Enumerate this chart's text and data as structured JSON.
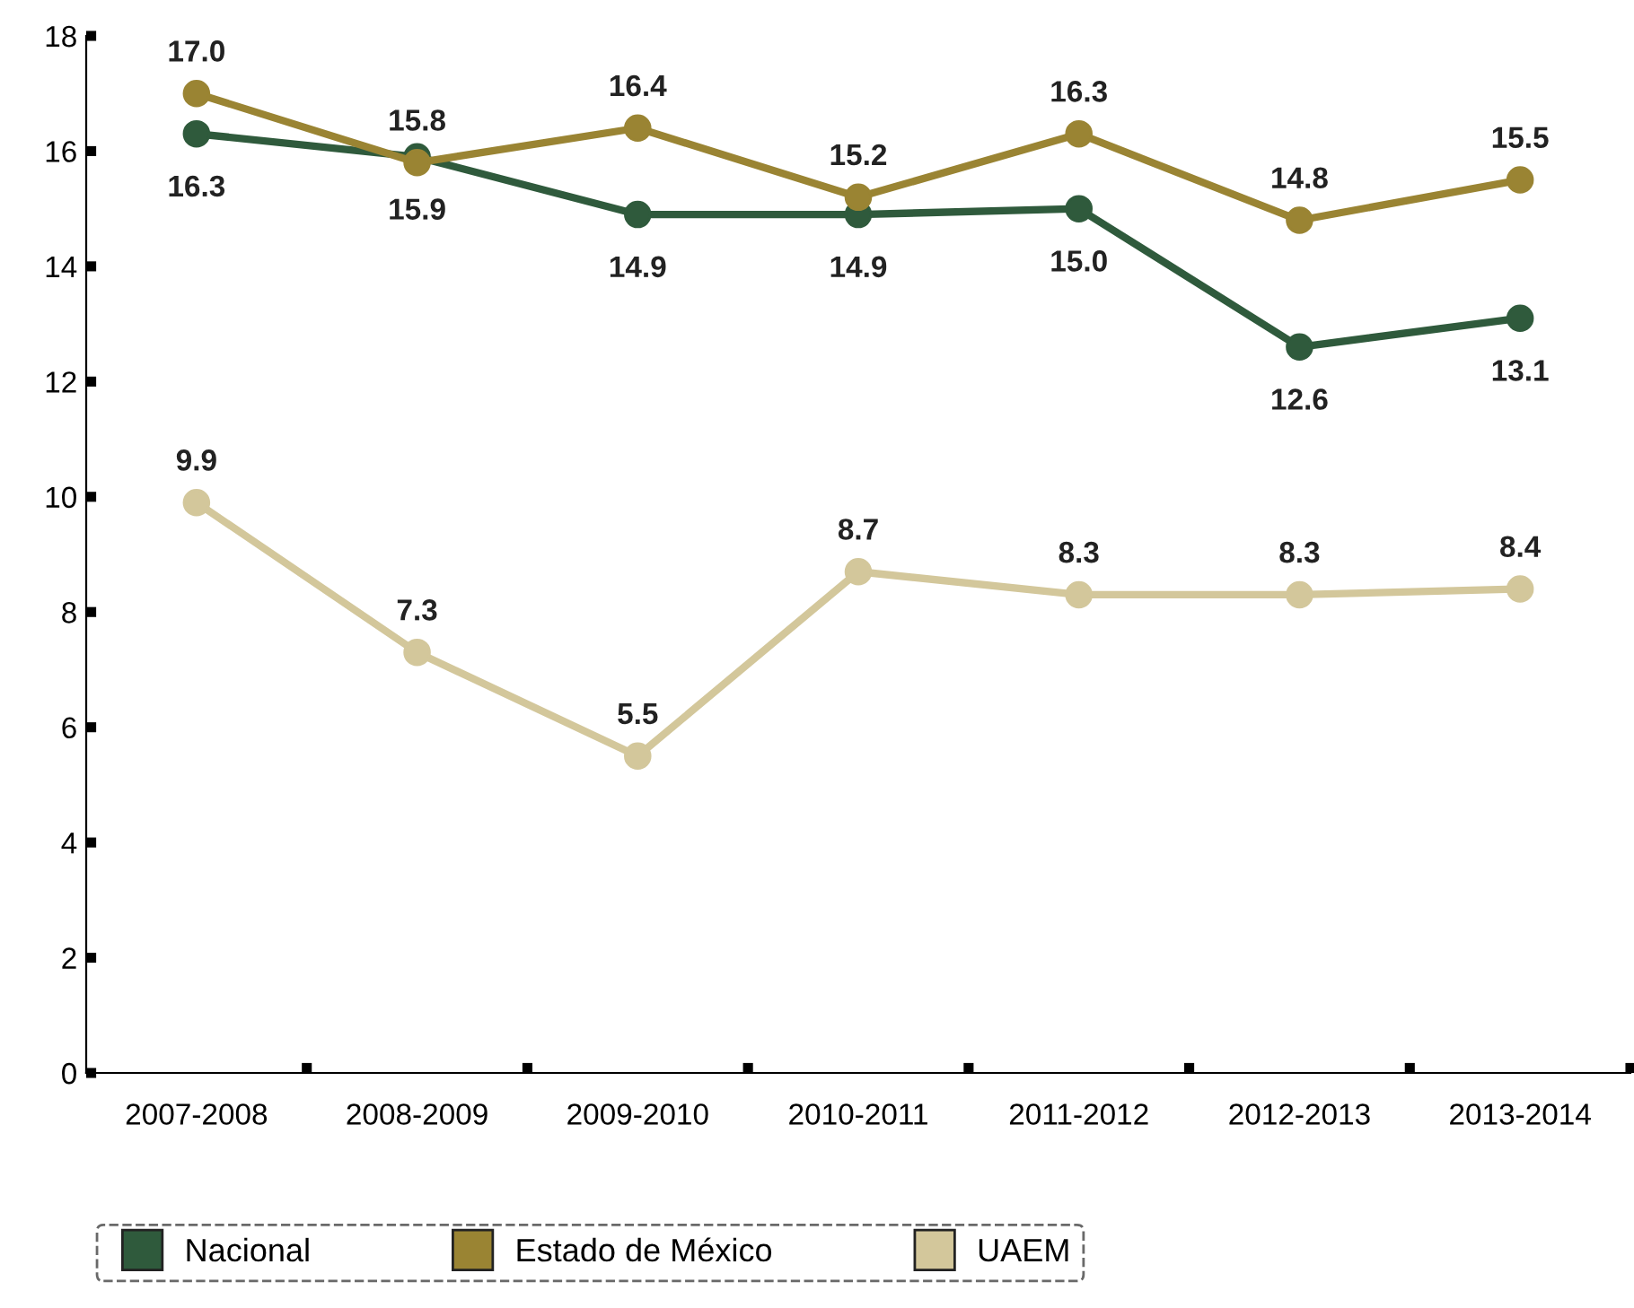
{
  "chart_data": {
    "type": "line",
    "categories": [
      "2007-2008",
      "2008-2009",
      "2009-2010",
      "2010-2011",
      "2011-2012",
      "2012-2013",
      "2013-2014"
    ],
    "series": [
      {
        "name": "Nacional",
        "color": "#2f5a3c",
        "values": [
          16.3,
          15.9,
          14.9,
          14.9,
          15.0,
          12.6,
          13.1
        ],
        "value_labels": [
          "16.3",
          "15.9",
          "14.9",
          "14.9",
          "15.0",
          "12.6",
          "13.1"
        ]
      },
      {
        "name": "Estado de México",
        "color": "#9a8433",
        "values": [
          17.0,
          15.8,
          16.4,
          15.2,
          16.3,
          14.8,
          15.5
        ],
        "value_labels": [
          "17.0",
          "15.8",
          "16.4",
          "15.2",
          "16.3",
          "14.8",
          "15.5"
        ]
      },
      {
        "name": "UAEM",
        "color": "#d3c79b",
        "values": [
          9.9,
          7.3,
          5.5,
          8.7,
          8.3,
          8.3,
          8.4
        ],
        "value_labels": [
          "9.9",
          "7.3",
          "5.5",
          "8.7",
          "8.3",
          "8.3",
          "8.4"
        ]
      }
    ],
    "ylim": [
      0,
      18
    ],
    "yticks": [
      0,
      2,
      4,
      6,
      8,
      10,
      12,
      14,
      16,
      18
    ],
    "grid": false,
    "legend": "bottom",
    "marker": "circle",
    "line_style": "solid"
  }
}
